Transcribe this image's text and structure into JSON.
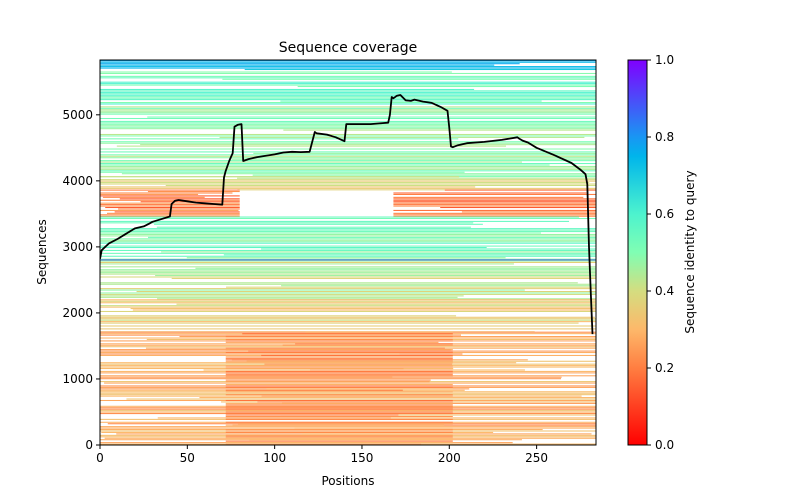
{
  "chart_data": {
    "type": "heatmap",
    "title": "Sequence coverage",
    "xlabel": "Positions",
    "ylabel": "Sequences",
    "xlim": [
      0,
      284
    ],
    "ylim": [
      0,
      5830
    ],
    "xticks": [
      0,
      50,
      100,
      150,
      200,
      250
    ],
    "yticks": [
      0,
      1000,
      2000,
      3000,
      4000,
      5000
    ],
    "grid": false,
    "colormap": "rainbow_r",
    "colorbar": {
      "label": "Sequence identity to query",
      "range": [
        0,
        1
      ],
      "ticks": [
        "0.0",
        "0.2",
        "0.4",
        "0.6",
        "0.8",
        "1.0"
      ],
      "stops": [
        "#ff0000",
        "#ff7e41",
        "#d4dd80",
        "#80feb3",
        "#1996f3",
        "#8000ff"
      ]
    },
    "identity_bands": [
      {
        "y_from": 5650,
        "y_to": 5830,
        "x_from": 0,
        "x_to": 284,
        "identity": 0.72
      },
      {
        "y_from": 5150,
        "y_to": 5650,
        "x_from": 0,
        "x_to": 284,
        "identity": 0.55
      },
      {
        "y_from": 4050,
        "y_to": 5150,
        "x_from": 0,
        "x_to": 284,
        "identity": 0.48
      },
      {
        "y_from": 3850,
        "y_to": 4050,
        "x_from": 0,
        "x_to": 284,
        "identity": 0.38
      },
      {
        "y_from": 3450,
        "y_to": 3850,
        "x_from": 0,
        "x_to": 80,
        "identity": 0.2
      },
      {
        "y_from": 3450,
        "y_to": 3850,
        "x_from": 168,
        "x_to": 284,
        "identity": 0.18
      },
      {
        "y_from": 2800,
        "y_to": 3450,
        "x_from": 0,
        "x_to": 284,
        "identity": 0.52
      },
      {
        "y_from": 2200,
        "y_to": 2800,
        "x_from": 0,
        "x_to": 284,
        "identity": 0.42
      },
      {
        "y_from": 1700,
        "y_to": 2200,
        "x_from": 0,
        "x_to": 284,
        "identity": 0.36
      },
      {
        "y_from": 0,
        "y_to": 1700,
        "x_from": 0,
        "x_to": 284,
        "identity": 0.28
      },
      {
        "y_from": 0,
        "y_to": 1700,
        "x_from": 72,
        "x_to": 202,
        "identity": 0.24
      }
    ],
    "series": [
      {
        "name": "coverage",
        "color": "#000000",
        "x": [
          0,
          1,
          5,
          10,
          15,
          20,
          25,
          28,
          30,
          35,
          40,
          41,
          43,
          45,
          50,
          55,
          60,
          65,
          70,
          71,
          72,
          74,
          76,
          77,
          79,
          81,
          82,
          85,
          90,
          100,
          105,
          110,
          115,
          120,
          123,
          124,
          130,
          135,
          140,
          141,
          145,
          150,
          155,
          160,
          165,
          166,
          167,
          168,
          170,
          172,
          175,
          178,
          180,
          185,
          190,
          195,
          199,
          200,
          201,
          202,
          205,
          210,
          220,
          230,
          239,
          240,
          242,
          245,
          250,
          260,
          270,
          275,
          278,
          279,
          280,
          281,
          282
        ],
        "y": [
          2820,
          2950,
          3050,
          3120,
          3200,
          3280,
          3310,
          3350,
          3380,
          3420,
          3460,
          3650,
          3700,
          3710,
          3690,
          3670,
          3660,
          3650,
          3640,
          4050,
          4150,
          4300,
          4420,
          4820,
          4850,
          4860,
          4300,
          4330,
          4360,
          4400,
          4430,
          4440,
          4435,
          4440,
          4740,
          4720,
          4700,
          4660,
          4600,
          4860,
          4860,
          4860,
          4860,
          4870,
          4880,
          5000,
          5270,
          5250,
          5290,
          5300,
          5220,
          5210,
          5230,
          5200,
          5180,
          5120,
          5060,
          4800,
          4520,
          4510,
          4540,
          4570,
          4590,
          4620,
          4660,
          4640,
          4610,
          4580,
          4500,
          4390,
          4270,
          4170,
          4100,
          3950,
          3000,
          2300,
          1680
        ]
      }
    ]
  }
}
